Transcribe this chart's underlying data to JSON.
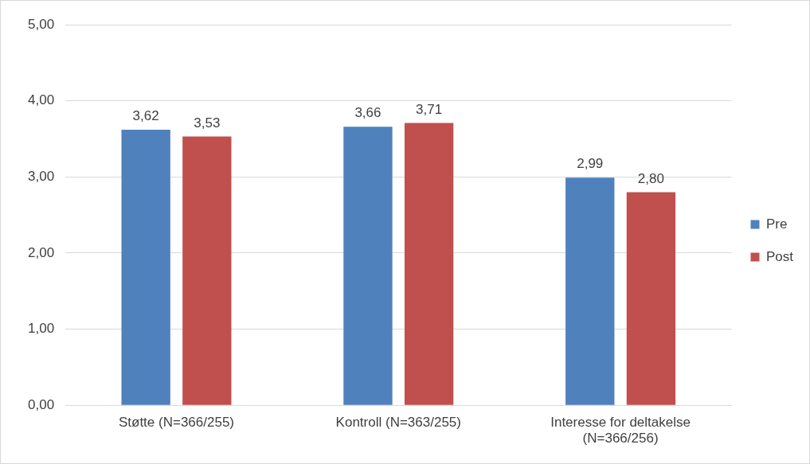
{
  "chart_data": {
    "type": "bar",
    "categories": [
      "Støtte (N=366/255)",
      "Kontroll (N=363/255)",
      "Interesse for deltakelse (N=366/256)"
    ],
    "series": [
      {
        "name": "Pre",
        "color": "#4f81bd",
        "values": [
          3.62,
          3.66,
          2.99
        ],
        "value_labels": [
          "3,62",
          "3,66",
          "2,99"
        ]
      },
      {
        "name": "Post",
        "color": "#c0504d",
        "values": [
          3.53,
          3.71,
          2.8
        ],
        "value_labels": [
          "3,53",
          "3,71",
          "2,80"
        ]
      }
    ],
    "ylim": [
      0,
      5
    ],
    "yticks": [
      {
        "value": 0,
        "label": "0,00"
      },
      {
        "value": 1,
        "label": "1,00"
      },
      {
        "value": 2,
        "label": "2,00"
      },
      {
        "value": 3,
        "label": "3,00"
      },
      {
        "value": 4,
        "label": "4,00"
      },
      {
        "value": 5,
        "label": "5,00"
      }
    ],
    "grid": "y",
    "legend": "right"
  }
}
